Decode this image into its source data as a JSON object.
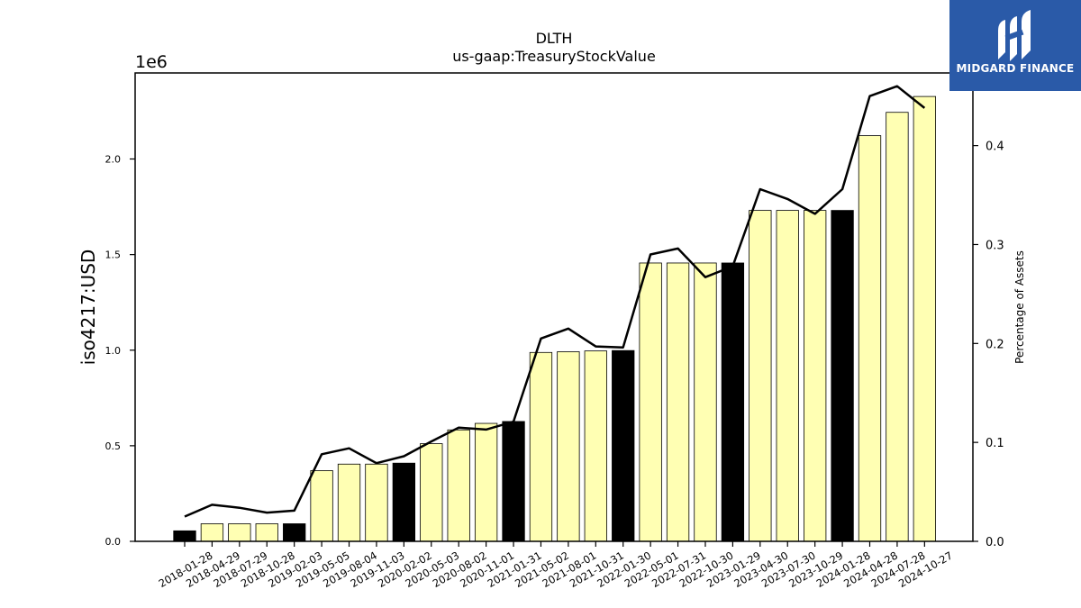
{
  "chart_data": {
    "type": "bar",
    "title": "DLTH",
    "subtitle": "us-gaap:TreasuryStockValue",
    "ylabel": "iso4217:USD",
    "y2label": "Percentage of Assets",
    "y_offset_label": "1e6",
    "ylim": [
      0,
      2450000
    ],
    "y2lim": [
      0,
      0.4734
    ],
    "yticks": [
      "0.0",
      "0.5",
      "1.0",
      "1.5",
      "2.0"
    ],
    "y2ticks": [
      "0.0",
      "0.1",
      "0.2",
      "0.3",
      "0.4"
    ],
    "categories": [
      "2018-01-28",
      "2018-04-29",
      "2018-07-29",
      "2018-10-28",
      "2019-02-03",
      "2019-05-05",
      "2019-08-04",
      "2019-11-03",
      "2020-02-02",
      "2020-05-03",
      "2020-08-02",
      "2020-11-01",
      "2021-01-31",
      "2021-05-02",
      "2021-08-01",
      "2021-10-31",
      "2022-01-30",
      "2022-05-01",
      "2022-07-31",
      "2022-10-30",
      "2023-01-29",
      "2023-04-30",
      "2023-07-30",
      "2023-10-29",
      "2024-01-28",
      "2024-04-28",
      "2024-07-28",
      "2024-10-27"
    ],
    "values": [
      55000,
      92000,
      92000,
      92000,
      92000,
      370000,
      404000,
      404000,
      409000,
      511000,
      583000,
      617000,
      627000,
      988000,
      992000,
      996000,
      998000,
      1456000,
      1456000,
      1456000,
      1456000,
      1731000,
      1731000,
      1731000,
      1731000,
      2122000,
      2244000,
      2327000
    ],
    "annual_flags": [
      true,
      false,
      false,
      false,
      true,
      false,
      false,
      false,
      true,
      false,
      false,
      false,
      true,
      false,
      false,
      false,
      true,
      false,
      false,
      false,
      true,
      false,
      false,
      false,
      true,
      false,
      false,
      false
    ],
    "series": [
      {
        "values": [
          0.025,
          0.037,
          0.034,
          0.029,
          0.031,
          0.088,
          0.094,
          0.079,
          0.086,
          0.101,
          0.115,
          0.113,
          0.121,
          0.205,
          0.215,
          0.197,
          0.196,
          0.29,
          0.296,
          0.267,
          0.278,
          0.356,
          0.346,
          0.331,
          0.356,
          0.45,
          0.46,
          0.438
        ]
      }
    ],
    "colors": {
      "annual_bar": "#000000",
      "quarter_bar": "#ffffb3",
      "line": "#000000"
    }
  },
  "logo": {
    "text": "MIDGARD FINANCE",
    "color": "#2a5aa8"
  }
}
